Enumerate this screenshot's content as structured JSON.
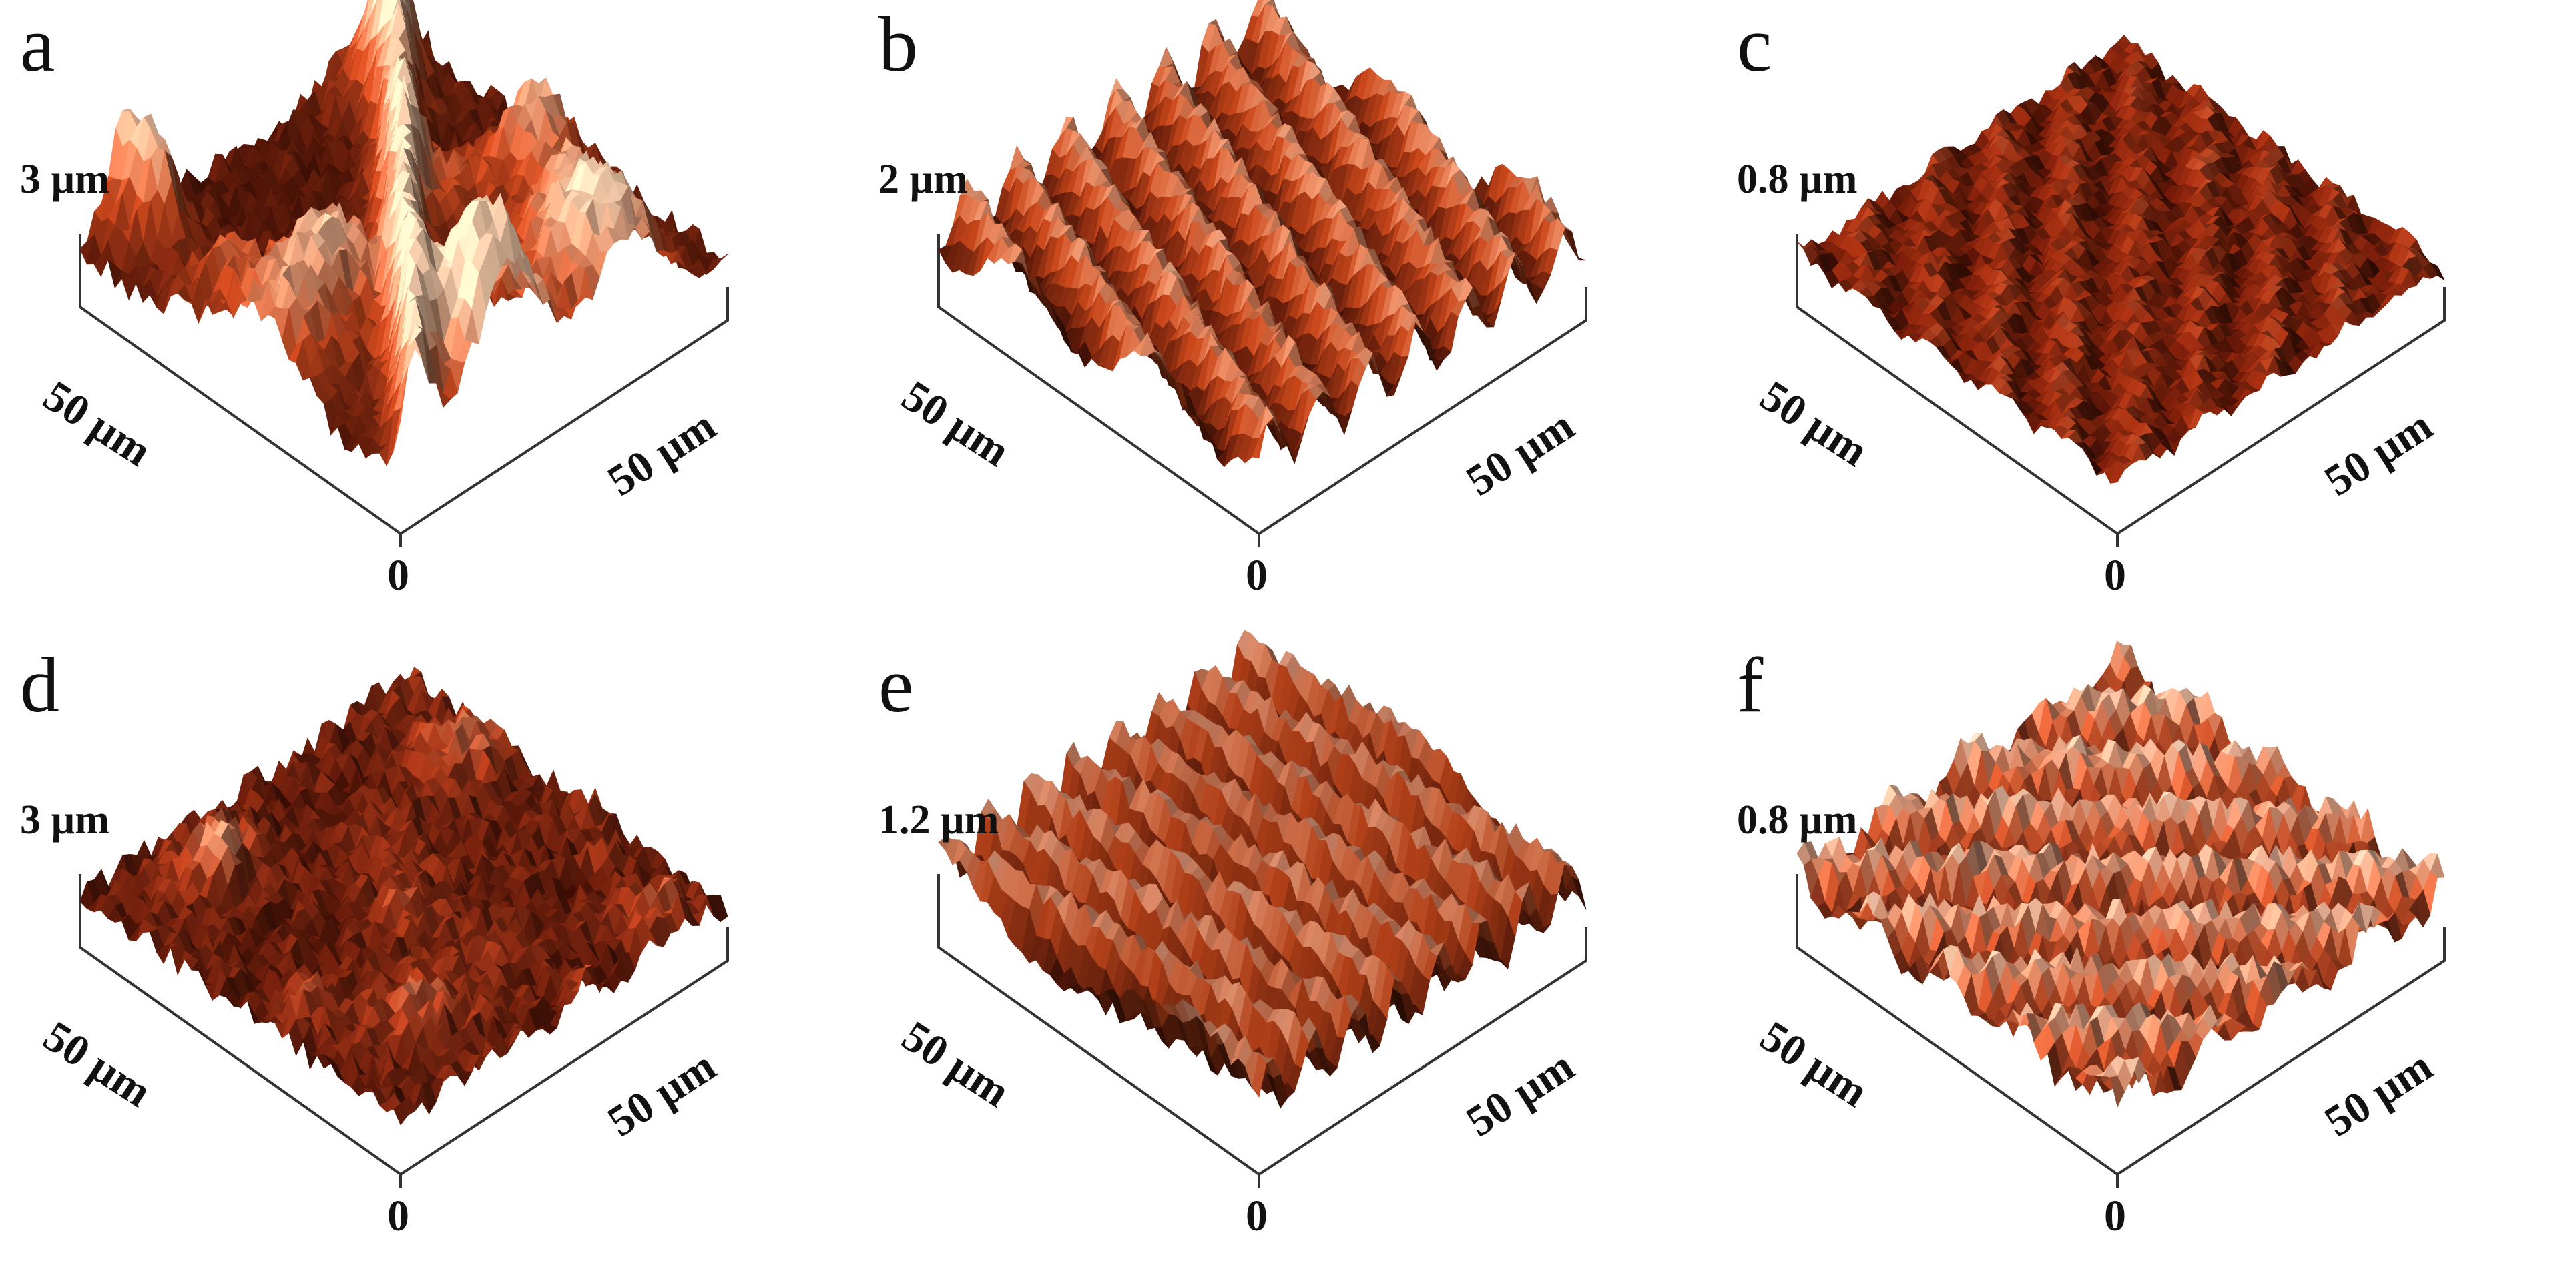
{
  "figure": {
    "panels": [
      {
        "letter": "a",
        "z_scale": "3 µm",
        "x_axis": "50 µm",
        "y_axis": "50 µm",
        "origin": "0",
        "texture": "rough-peaks",
        "tone": [
          "#3a0c04",
          "#b8421c",
          "#f2c9a8"
        ]
      },
      {
        "letter": "b",
        "z_scale": "2 µm",
        "x_axis": "50 µm",
        "y_axis": "50 µm",
        "origin": "0",
        "texture": "ridges",
        "tone": [
          "#2a0703",
          "#a33a16",
          "#f0d2b8"
        ]
      },
      {
        "letter": "c",
        "z_scale": "0.8 µm",
        "x_axis": "50 µm",
        "y_axis": "50 µm",
        "origin": "0",
        "texture": "flat-fine",
        "tone": [
          "#4a0d04",
          "#8e2a10",
          "#c9653e"
        ]
      },
      {
        "letter": "d",
        "z_scale": "3 µm",
        "x_axis": "50 µm",
        "y_axis": "50 µm",
        "origin": "0",
        "texture": "rough-fine",
        "tone": [
          "#3a0b03",
          "#a4381a",
          "#e2a27e"
        ]
      },
      {
        "letter": "e",
        "z_scale": "1.2 µm",
        "x_axis": "50 µm",
        "y_axis": "50 µm",
        "origin": "0",
        "texture": "diag-ridges",
        "tone": [
          "#220603",
          "#8f3414",
          "#efd9c6"
        ]
      },
      {
        "letter": "f",
        "z_scale": "0.8 µm",
        "x_axis": "50 µm",
        "y_axis": "50 µm",
        "origin": "0",
        "texture": "horiz-bands",
        "tone": [
          "#4a1208",
          "#c0502a",
          "#f4d8c0"
        ]
      }
    ]
  }
}
